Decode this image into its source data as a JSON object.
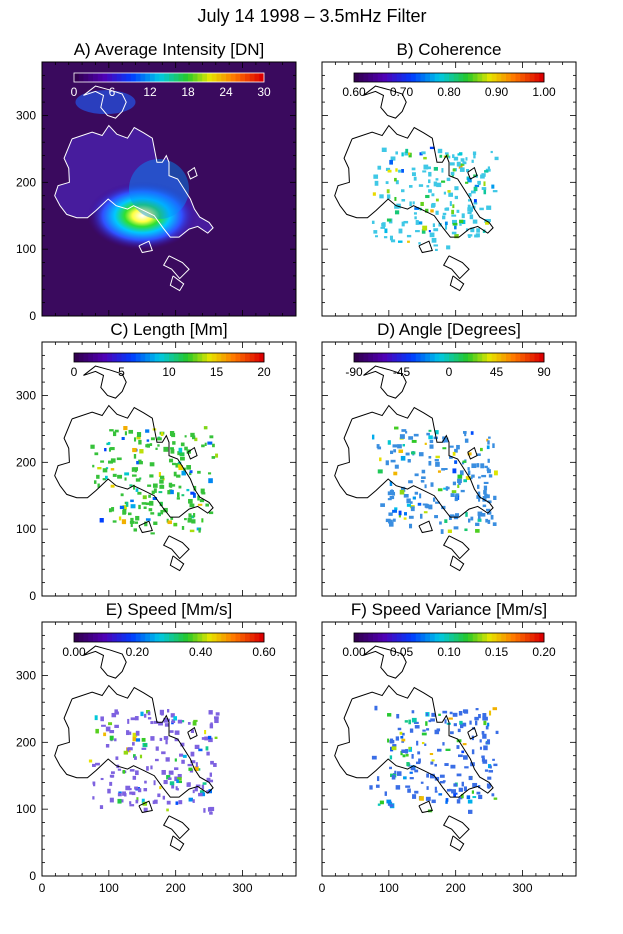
{
  "figure": {
    "title": "July 14 1998 – 3.5mHz Filter"
  },
  "chart_data": [
    {
      "type": "heatmap",
      "panel": "A",
      "title": "A) Average Intensity [DN]",
      "colorscale": "rainbow",
      "colorbar": {
        "range": [
          0,
          30
        ],
        "ticks": [
          "0",
          "6",
          "12",
          "18",
          "24",
          "30"
        ]
      },
      "xlim": [
        0,
        380
      ],
      "ylim": [
        0,
        380
      ],
      "yticks": [
        "0",
        "100",
        "200",
        "300"
      ],
      "xticks": [],
      "background": "#3a0a5e"
    },
    {
      "type": "heatmap",
      "panel": "B",
      "title": "B) Coherence",
      "colorscale": "rainbow",
      "colorbar": {
        "range": [
          0.6,
          1.0
        ],
        "ticks": [
          "0.60",
          "0.70",
          "0.80",
          "0.90",
          "1.00"
        ]
      },
      "xlim": [
        0,
        380
      ],
      "ylim": [
        0,
        380
      ],
      "yticks": [],
      "xticks": [],
      "dominant_color": "#3fc8e6"
    },
    {
      "type": "heatmap",
      "panel": "C",
      "title": "C) Length [Mm]",
      "colorscale": "rainbow",
      "colorbar": {
        "range": [
          0,
          20
        ],
        "ticks": [
          "0",
          "5",
          "10",
          "15",
          "20"
        ]
      },
      "xlim": [
        0,
        380
      ],
      "ylim": [
        0,
        380
      ],
      "yticks": [
        "0",
        "100",
        "200",
        "300"
      ],
      "xticks": [],
      "dominant_color": "#36c23a"
    },
    {
      "type": "heatmap",
      "panel": "D",
      "title": "D) Angle [Degrees]",
      "colorscale": "rainbow",
      "colorbar": {
        "range": [
          -90,
          90
        ],
        "ticks": [
          "-90",
          "-45",
          "0",
          "45",
          "90"
        ]
      },
      "xlim": [
        0,
        380
      ],
      "ylim": [
        0,
        380
      ],
      "yticks": [],
      "xticks": [],
      "dominant_color": "#3a8ee0"
    },
    {
      "type": "heatmap",
      "panel": "E",
      "title": "E) Speed [Mm/s]",
      "colorscale": "rainbow",
      "colorbar": {
        "range": [
          0.0,
          0.6
        ],
        "ticks": [
          "0.00",
          "0.20",
          "0.40",
          "0.60"
        ]
      },
      "xlim": [
        0,
        380
      ],
      "ylim": [
        0,
        380
      ],
      "yticks": [
        "0",
        "100",
        "200",
        "300"
      ],
      "xticks": [
        "0",
        "100",
        "200",
        "300"
      ],
      "dominant_color": "#7e62e0"
    },
    {
      "type": "heatmap",
      "panel": "F",
      "title": "F) Speed Variance [Mm/s]",
      "colorscale": "rainbow",
      "colorbar": {
        "range": [
          0.0,
          0.2
        ],
        "ticks": [
          "0.00",
          "0.05",
          "0.10",
          "0.15",
          "0.20"
        ]
      },
      "xlim": [
        0,
        380
      ],
      "ylim": [
        0,
        380
      ],
      "yticks": [],
      "xticks": [
        "0",
        "100",
        "200",
        "300"
      ],
      "dominant_color": "#3a6ee6"
    }
  ],
  "contour": [
    [
      45,
      265
    ],
    [
      75,
      275
    ],
    [
      90,
      270
    ],
    [
      100,
      285
    ],
    [
      112,
      272
    ],
    [
      128,
      266
    ],
    [
      138,
      282
    ],
    [
      152,
      274
    ],
    [
      165,
      266
    ],
    [
      172,
      230
    ],
    [
      180,
      230
    ],
    [
      186,
      240
    ],
    [
      190,
      230
    ],
    [
      190,
      210
    ],
    [
      203,
      205
    ],
    [
      222,
      175
    ],
    [
      228,
      160
    ],
    [
      236,
      148
    ],
    [
      250,
      140
    ],
    [
      256,
      132
    ],
    [
      248,
      124
    ],
    [
      233,
      134
    ],
    [
      220,
      130
    ],
    [
      205,
      118
    ],
    [
      192,
      118
    ],
    [
      181,
      132
    ],
    [
      168,
      150
    ],
    [
      152,
      158
    ],
    [
      137,
      165
    ],
    [
      128,
      160
    ],
    [
      111,
      165
    ],
    [
      99,
      175
    ],
    [
      81,
      158
    ],
    [
      68,
      147
    ],
    [
      52,
      147
    ],
    [
      37,
      152
    ],
    [
      27,
      165
    ],
    [
      19,
      180
    ],
    [
      24,
      195
    ],
    [
      41,
      200
    ],
    [
      40,
      221
    ],
    [
      33,
      236
    ],
    [
      45,
      265
    ]
  ],
  "contour_islands": [
    [
      [
        190,
        90
      ],
      [
        210,
        80
      ],
      [
        220,
        70
      ],
      [
        206,
        56
      ],
      [
        194,
        70
      ],
      [
        182,
        76
      ],
      [
        190,
        90
      ]
    ],
    [
      [
        196,
        60
      ],
      [
        212,
        48
      ],
      [
        206,
        38
      ],
      [
        192,
        46
      ],
      [
        196,
        60
      ]
    ],
    [
      [
        62,
        330
      ],
      [
        80,
        336
      ],
      [
        92,
        330
      ],
      [
        88,
        312
      ],
      [
        98,
        300
      ],
      [
        110,
        296
      ],
      [
        120,
        306
      ],
      [
        126,
        320
      ],
      [
        120,
        332
      ],
      [
        102,
        338
      ],
      [
        80,
        344
      ],
      [
        62,
        330
      ]
    ],
    [
      [
        218,
        215
      ],
      [
        228,
        222
      ],
      [
        232,
        210
      ],
      [
        222,
        205
      ],
      [
        218,
        215
      ]
    ],
    [
      [
        145,
        105
      ],
      [
        160,
        112
      ],
      [
        165,
        98
      ],
      [
        150,
        95
      ],
      [
        145,
        105
      ]
    ]
  ]
}
